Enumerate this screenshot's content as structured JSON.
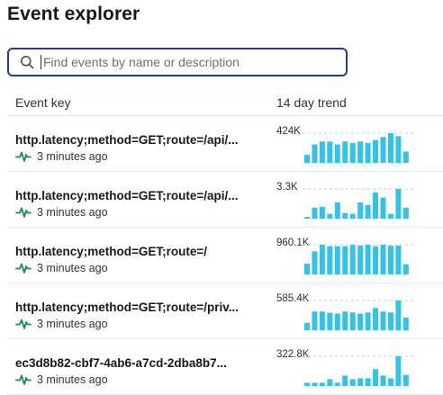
{
  "page": {
    "title": "Event explorer"
  },
  "search": {
    "placeholder": "Find events by name or description",
    "value": ""
  },
  "table": {
    "headers": {
      "key": "Event key",
      "trend": "14 day trend"
    },
    "rows": [
      {
        "key": "http.latency;method=GET;route=/api/...",
        "last_seen": "3 minutes ago",
        "peak_label": "424K",
        "trend": [
          0.27,
          0.62,
          0.72,
          0.72,
          0.62,
          0.72,
          0.67,
          0.72,
          0.67,
          0.77,
          0.87,
          1.0,
          0.9,
          0.38
        ]
      },
      {
        "key": "http.latency;method=GET;route=/api/...",
        "last_seen": "3 minutes ago",
        "peak_label": "3.3K",
        "trend": [
          0.06,
          0.37,
          0.4,
          0.16,
          0.55,
          0.19,
          0.16,
          0.55,
          0.46,
          0.88,
          0.71,
          0.16,
          1.0,
          0.37
        ]
      },
      {
        "key": "http.latency;method=GET;route=/",
        "last_seen": "3 minutes ago",
        "peak_label": "960.1K",
        "trend": [
          0.36,
          0.78,
          1.0,
          0.95,
          0.95,
          0.95,
          1.0,
          0.97,
          1.0,
          0.95,
          1.0,
          0.97,
          0.97,
          0.34
        ]
      },
      {
        "key": "http.latency;method=GET;route=/priv...",
        "last_seen": "3 minutes ago",
        "peak_label": "585.4K",
        "trend": [
          0.25,
          0.63,
          0.63,
          0.59,
          0.56,
          0.63,
          0.6,
          0.56,
          0.6,
          0.75,
          0.63,
          0.6,
          1.0,
          0.43
        ]
      },
      {
        "key": "ec3d8b82-cbf7-4ab6-a7cd-2dba8b7...",
        "last_seen": "3 minutes ago",
        "peak_label": "322.8K",
        "trend": [
          0.11,
          0.11,
          0.11,
          0.23,
          0.11,
          0.35,
          0.23,
          0.26,
          0.26,
          0.57,
          0.35,
          0.26,
          1.0,
          0.38
        ]
      }
    ]
  },
  "colors": {
    "bar": "#33c3ea",
    "pulse": "#1b8a4b",
    "search_border": "#233d8f"
  },
  "icons": {
    "search": "search-icon",
    "activity": "activity-pulse-icon"
  }
}
